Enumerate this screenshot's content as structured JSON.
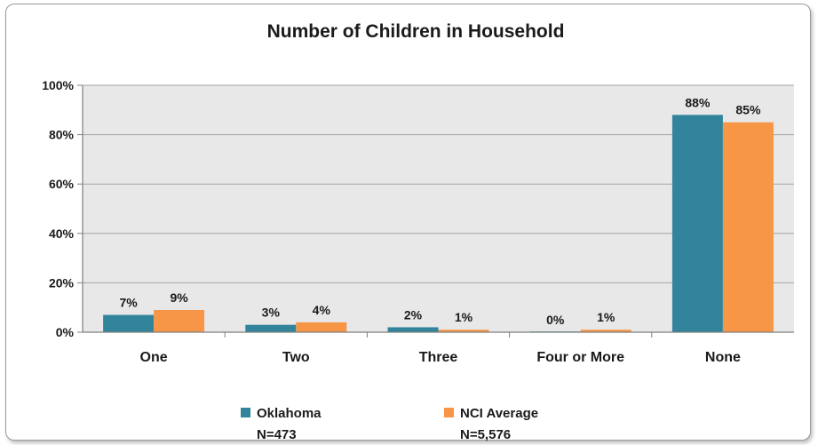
{
  "chart_data": {
    "type": "bar",
    "title": "Number of Children in Household",
    "categories": [
      "One",
      "Two",
      "Three",
      "Four or More",
      "None"
    ],
    "series": [
      {
        "name": "Oklahoma",
        "note": "N=473",
        "color": "#31849b",
        "values": [
          7,
          3,
          2,
          0,
          88
        ],
        "labels": [
          "7%",
          "3%",
          "2%",
          "0%",
          "88%"
        ]
      },
      {
        "name": "NCI Average",
        "note": "N=5,576",
        "color": "#f79646",
        "values": [
          9,
          4,
          1,
          1,
          85
        ],
        "labels": [
          "9%",
          "4%",
          "1%",
          "1%",
          "85%"
        ]
      }
    ],
    "ylim": [
      0,
      100
    ],
    "yticks": [
      0,
      20,
      40,
      60,
      80,
      100
    ],
    "ytick_labels": [
      "0%",
      "20%",
      "40%",
      "60%",
      "80%",
      "100%"
    ],
    "grid": true,
    "plot_background": "#e8e8e8",
    "legend_position": "bottom"
  }
}
